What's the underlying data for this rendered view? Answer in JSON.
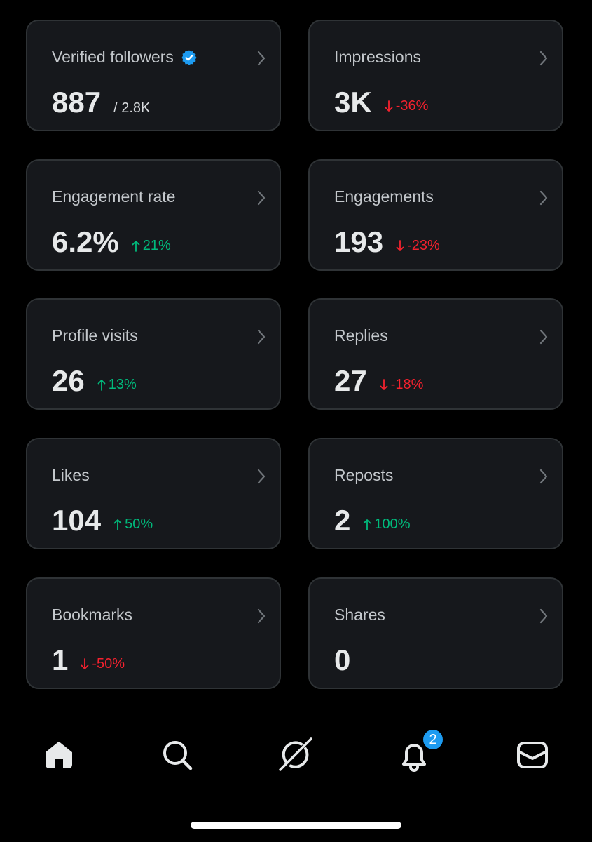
{
  "colors": {
    "background": "#000000",
    "card_background": "#16181c",
    "card_border": "#2f3336",
    "positive": "#00ba7c",
    "negative": "#f4212e",
    "accent": "#1d9bf0"
  },
  "cards": [
    {
      "title": "Verified followers",
      "title_icon": "verified-badge-icon",
      "value": "887",
      "sub": "/ 2.8K"
    },
    {
      "title": "Impressions",
      "value": "3K",
      "delta": "-36%",
      "direction": "down"
    },
    {
      "title": "Engagement rate",
      "value": "6.2%",
      "delta": "21%",
      "direction": "up"
    },
    {
      "title": "Engagements",
      "value": "193",
      "delta": "-23%",
      "direction": "down"
    },
    {
      "title": "Profile visits",
      "value": "26",
      "delta": "13%",
      "direction": "up"
    },
    {
      "title": "Replies",
      "value": "27",
      "delta": "-18%",
      "direction": "down"
    },
    {
      "title": "Likes",
      "value": "104",
      "delta": "50%",
      "direction": "up"
    },
    {
      "title": "Reposts",
      "value": "2",
      "delta": "100%",
      "direction": "up"
    },
    {
      "title": "Bookmarks",
      "value": "1",
      "delta": "-50%",
      "direction": "down"
    },
    {
      "title": "Shares",
      "value": "0"
    }
  ],
  "nav": {
    "items": [
      {
        "icon": "home-icon"
      },
      {
        "icon": "search-icon"
      },
      {
        "icon": "grok-icon"
      },
      {
        "icon": "bell-icon"
      },
      {
        "icon": "mail-icon"
      }
    ],
    "notification_count": "2"
  }
}
